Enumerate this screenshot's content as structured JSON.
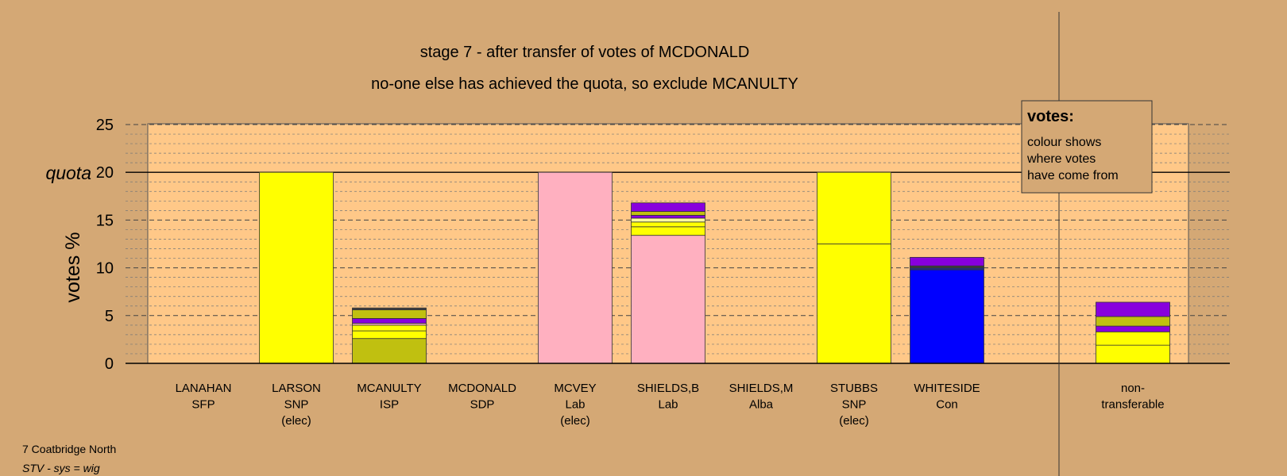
{
  "chart_data": {
    "type": "bar",
    "stacked": true,
    "title": "stage 7 - after transfer of votes of MCDONALD",
    "subtitle": "no-one else has achieved the quota, so exclude MCANULTY",
    "ylabel": "votes %",
    "ylim": [
      0,
      25
    ],
    "yticks": [
      "0",
      "5",
      "10",
      "15",
      "20",
      "25"
    ],
    "quota": 20,
    "quota_label": "quota",
    "grid": true,
    "categories": [
      {
        "name": "LANAHAN",
        "party": "SFP",
        "status": ""
      },
      {
        "name": "LARSON",
        "party": "SNP",
        "status": "(elec)"
      },
      {
        "name": "MCANULTY",
        "party": "ISP",
        "status": ""
      },
      {
        "name": "MCDONALD",
        "party": "SDP",
        "status": ""
      },
      {
        "name": "MCVEY",
        "party": "Lab",
        "status": "(elec)"
      },
      {
        "name": "SHIELDS,B",
        "party": "Lab",
        "status": ""
      },
      {
        "name": "SHIELDS,M",
        "party": "Alba",
        "status": ""
      },
      {
        "name": "STUBBS",
        "party": "SNP",
        "status": "(elec)"
      },
      {
        "name": "WHITESIDE",
        "party": "Con",
        "status": ""
      },
      {
        "name": "non-",
        "party": "transferable",
        "status": ""
      }
    ],
    "stacks": [
      [],
      [
        {
          "value": 20.0,
          "color": "#ffff00"
        }
      ],
      [
        {
          "value": 2.6,
          "color": "#c0c010"
        },
        {
          "value": 0.8,
          "color": "#ffff00"
        },
        {
          "value": 0.6,
          "color": "#ffff00"
        },
        {
          "value": 0.2,
          "color": "#ffb0c0"
        },
        {
          "value": 0.5,
          "color": "#8800dd"
        },
        {
          "value": 0.9,
          "color": "#c0c010"
        },
        {
          "value": 0.2,
          "color": "#404040"
        }
      ],
      [],
      [
        {
          "value": 20.0,
          "color": "#ffb0c0"
        }
      ],
      [
        {
          "value": 13.4,
          "color": "#ffb0c0"
        },
        {
          "value": 0.9,
          "color": "#ffff00"
        },
        {
          "value": 0.5,
          "color": "#ffff00"
        },
        {
          "value": 0.4,
          "color": "#ffffa0"
        },
        {
          "value": 0.3,
          "color": "#8800dd"
        },
        {
          "value": 0.4,
          "color": "#c0c010"
        },
        {
          "value": 0.9,
          "color": "#8800dd"
        }
      ],
      [],
      [
        {
          "value": 12.5,
          "color": "#ffff00"
        },
        {
          "value": 7.5,
          "color": "#ffff00"
        }
      ],
      [
        {
          "value": 9.8,
          "color": "#0000ff"
        },
        {
          "value": 0.2,
          "color": "#203080"
        },
        {
          "value": 0.2,
          "color": "#404040"
        },
        {
          "value": 0.9,
          "color": "#8800dd"
        }
      ],
      [
        {
          "value": 1.9,
          "color": "#ffff00"
        },
        {
          "value": 1.4,
          "color": "#ffff00"
        },
        {
          "value": 0.6,
          "color": "#8800dd"
        },
        {
          "value": 1.0,
          "color": "#c0c010"
        },
        {
          "value": 1.5,
          "color": "#8800dd"
        }
      ]
    ],
    "legend": {
      "title": "votes:",
      "lines": [
        "colour shows",
        "where votes",
        "have come from"
      ]
    }
  },
  "footer": {
    "line1": "7 Coatbridge North",
    "line2": "STV - sys = wig"
  },
  "colors": {
    "background": "#d4a875",
    "plot_area": "#ffc888",
    "nontransferable_area": "#d4a875"
  }
}
